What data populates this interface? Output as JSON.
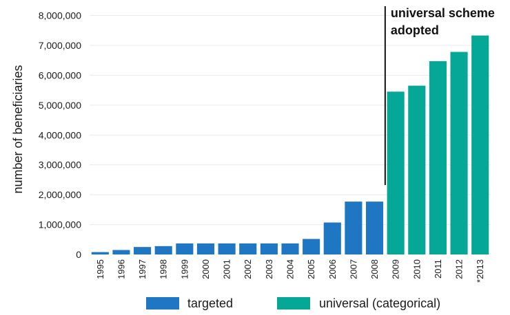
{
  "chart_data": {
    "type": "bar",
    "ylabel": "number of beneficiaries",
    "xlabel": "",
    "ylim": [
      0,
      8000000
    ],
    "yticks": [
      0,
      1000000,
      2000000,
      3000000,
      4000000,
      5000000,
      6000000,
      7000000,
      8000000
    ],
    "ytick_labels": [
      "0",
      "1,000,000",
      "2,000,000",
      "3,000,000",
      "4,000,000",
      "5,000,000",
      "6,000,000",
      "7,000,000",
      "8,000,000"
    ],
    "grid": true,
    "categories": [
      "1995",
      "1996",
      "1997",
      "1998",
      "1999",
      "2000",
      "2001",
      "2002",
      "2003",
      "2004",
      "2005",
      "2006",
      "2007",
      "2008",
      "2009",
      "2010",
      "2011",
      "2012",
      "*2013"
    ],
    "series": [
      {
        "name": "targeted",
        "color": "#1f77c4",
        "values": [
          80000,
          150000,
          250000,
          280000,
          370000,
          370000,
          370000,
          370000,
          370000,
          370000,
          520000,
          1070000,
          1770000,
          1770000,
          null,
          null,
          null,
          null,
          null
        ]
      },
      {
        "name": "universal (categorical)",
        "color": "#05a896",
        "values": [
          null,
          null,
          null,
          null,
          null,
          null,
          null,
          null,
          null,
          null,
          null,
          null,
          null,
          null,
          5450000,
          5650000,
          6470000,
          6780000,
          7330000
        ]
      }
    ],
    "annotation": {
      "lines": [
        "universal scheme",
        "adopted"
      ],
      "between": [
        "2008",
        "2009"
      ]
    },
    "legend": {
      "placement": "bottom",
      "entries": [
        "targeted",
        "universal (categorical)"
      ]
    }
  }
}
